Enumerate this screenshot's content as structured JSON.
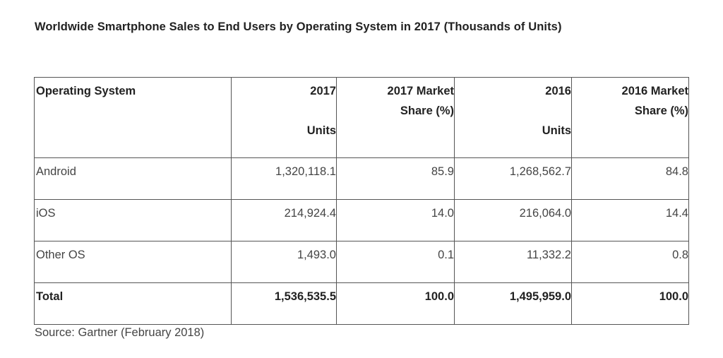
{
  "title": "Worldwide Smartphone Sales to End Users by Operating System in 2017 (Thousands of Units)",
  "table": {
    "headers": [
      [
        "Operating System"
      ],
      [
        "2017",
        "",
        "Units"
      ],
      [
        "2017 Market",
        "Share (%)"
      ],
      [
        "2016",
        "",
        "Units"
      ],
      [
        "2016 Market",
        "Share (%)"
      ]
    ],
    "rows": [
      [
        "Android",
        "1,320,118.1",
        "85.9",
        "1,268,562.7",
        "84.8"
      ],
      [
        "iOS",
        "214,924.4",
        "14.0",
        "216,064.0",
        "14.4"
      ],
      [
        "Other OS",
        "1,493.0",
        "0.1",
        "11,332.2",
        "0.8"
      ],
      [
        "Total",
        "1,536,535.5",
        "100.0",
        "1,495,959.0",
        "100.0"
      ]
    ]
  },
  "source": "Source: Gartner (February 2018)"
}
